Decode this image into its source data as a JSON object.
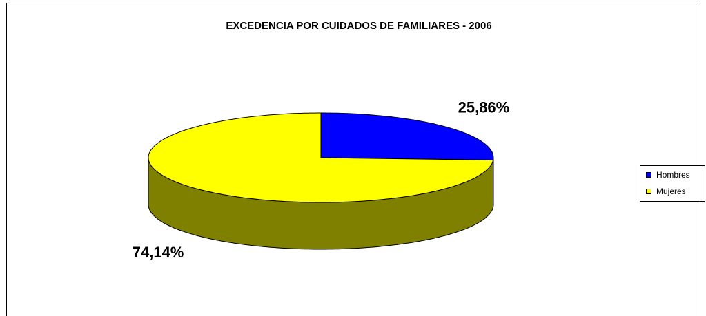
{
  "chart_data": {
    "type": "pie",
    "title": "EXCEDENCIA POR CUIDADOS DE FAMILIARES - 2006",
    "categories": [
      "Hombres",
      "Mujeres"
    ],
    "values": [
      25.86,
      74.14
    ],
    "value_labels": [
      "25,86%",
      "74,14%"
    ],
    "colors": [
      "#0000ff",
      "#ffff00"
    ],
    "legend": "right"
  }
}
